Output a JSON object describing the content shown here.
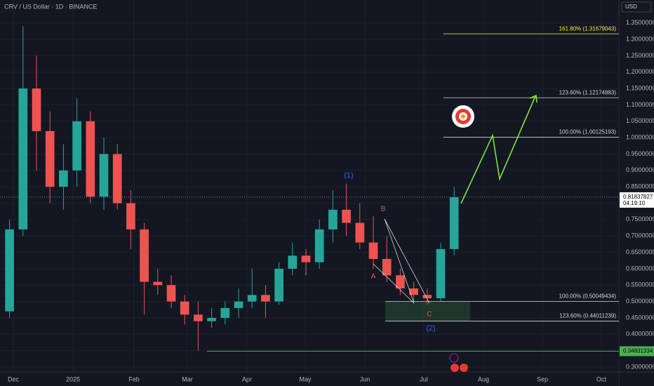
{
  "chart_data": {
    "type": "candlestick",
    "title": "CRV / US Dollar · 1D · BINANCE",
    "currency": "USD",
    "categories": [
      null,
      null,
      null,
      null,
      null,
      null,
      null,
      null,
      null,
      null,
      null,
      null,
      null,
      null,
      null,
      null,
      null,
      null,
      null,
      null,
      null,
      null,
      null,
      null,
      null,
      null,
      null,
      null,
      null,
      null,
      null,
      null,
      null,
      null
    ],
    "open": [
      0.47,
      0.72,
      1.15,
      1.02,
      0.85,
      0.9,
      1.05,
      0.82,
      0.95,
      0.8,
      0.72,
      0.56,
      0.55,
      0.5,
      0.46,
      0.44,
      0.45,
      0.48,
      0.5,
      0.52,
      0.5,
      0.6,
      0.64,
      0.62,
      0.72,
      0.78,
      0.74,
      0.68,
      0.63,
      0.58,
      0.54,
      0.52,
      0.51,
      0.66
    ],
    "high": [
      0.75,
      1.34,
      1.25,
      1.08,
      0.98,
      1.12,
      1.08,
      1.0,
      0.98,
      0.84,
      0.74,
      0.6,
      0.58,
      0.52,
      0.5,
      0.48,
      0.5,
      0.54,
      0.6,
      0.55,
      0.62,
      0.68,
      0.66,
      0.75,
      0.84,
      0.86,
      0.8,
      0.76,
      0.7,
      0.6,
      0.56,
      0.54,
      0.68,
      0.85
    ],
    "low": [
      0.45,
      0.7,
      0.9,
      0.8,
      0.78,
      0.85,
      0.8,
      0.78,
      0.78,
      0.66,
      0.46,
      0.52,
      0.48,
      0.43,
      0.35,
      0.42,
      0.43,
      0.45,
      0.48,
      0.45,
      0.49,
      0.58,
      0.58,
      0.6,
      0.68,
      0.7,
      0.66,
      0.6,
      0.56,
      0.52,
      0.5,
      0.49,
      0.5,
      0.64
    ],
    "close": [
      0.72,
      1.15,
      1.02,
      0.85,
      0.9,
      1.05,
      0.82,
      0.95,
      0.8,
      0.72,
      0.56,
      0.55,
      0.5,
      0.46,
      0.44,
      0.45,
      0.48,
      0.5,
      0.52,
      0.5,
      0.6,
      0.64,
      0.62,
      0.72,
      0.78,
      0.74,
      0.68,
      0.63,
      0.58,
      0.54,
      0.52,
      0.51,
      0.66,
      0.818
    ],
    "up_color": "#26a69a",
    "down_color": "#ef5350",
    "xtick_labels": [
      "Dec",
      "2025",
      "Feb",
      "Mar",
      "Apr",
      "May",
      "Jun",
      "Jul",
      "Aug",
      "Sep",
      "Oct"
    ],
    "ylim": [
      0.285,
      1.42
    ],
    "yticks": [
      {
        "value": 0.3,
        "label": "0.30000000"
      },
      {
        "value": 0.35,
        "label": "0.35000000"
      },
      {
        "value": 0.4,
        "label": "0.40000000"
      },
      {
        "value": 0.45,
        "label": "0.45000000"
      },
      {
        "value": 0.5,
        "label": "0.50000000"
      },
      {
        "value": 0.55,
        "label": "0.55000000"
      },
      {
        "value": 0.6,
        "label": "0.60000000"
      },
      {
        "value": 0.65,
        "label": "0.65000000"
      },
      {
        "value": 0.7,
        "label": "0.70000000"
      },
      {
        "value": 0.75,
        "label": "0.75000000"
      },
      {
        "value": 0.8,
        "label": "0.80000000"
      },
      {
        "value": 0.85,
        "label": "0.85000000"
      },
      {
        "value": 0.9,
        "label": "0.90000000"
      },
      {
        "value": 0.95,
        "label": "0.95000000"
      },
      {
        "value": 1.0,
        "label": "1.00000000"
      },
      {
        "value": 1.05,
        "label": "1.05000000"
      },
      {
        "value": 1.1,
        "label": "1.10000000"
      },
      {
        "value": 1.15,
        "label": "1.15000000"
      },
      {
        "value": 1.2,
        "label": "1.20000000"
      },
      {
        "value": 1.25,
        "label": "1.25000000"
      },
      {
        "value": 1.3,
        "label": "1.30000000"
      },
      {
        "value": 1.35,
        "label": "1.35000000"
      }
    ],
    "last_price": 0.81837827,
    "countdown": "04:19:10",
    "support": 0.34831334,
    "fib_levels": [
      {
        "value": 1.31679043,
        "label": "161.80% (1.31679043)"
      },
      {
        "value": 1.12174883,
        "label": "123.60% (1.12174883)"
      },
      {
        "value": 1.00125193,
        "label": "100.00% (1.00125193)"
      },
      {
        "value": 0.50049434,
        "label": "100.00% (0.50049434)"
      },
      {
        "value": 0.44011239,
        "label": "123.60% (0.44011239)"
      }
    ],
    "wave_labels": [
      "(1)",
      "(2)",
      "A",
      "B",
      "C"
    ]
  }
}
